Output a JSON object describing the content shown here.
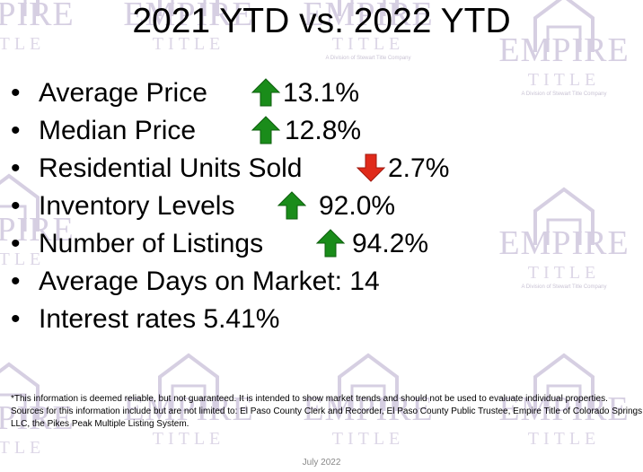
{
  "title": "2021 YTD vs. 2022 YTD",
  "watermark": {
    "brand": "EMPIRE",
    "subtitle": "TITLE",
    "division": "A Division of Stewart Title Company"
  },
  "bullets": [
    {
      "text": "Average Price",
      "trend": "up",
      "value": "13.1%"
    },
    {
      "text": "Median Price",
      "trend": "up",
      "value": "12.8%"
    },
    {
      "text": "Residential Units Sold",
      "trend": "down",
      "value": "2.7%"
    },
    {
      "text": "Inventory Levels",
      "trend": "up",
      "value": "92.0%"
    },
    {
      "text": "Number of Listings",
      "trend": "up",
      "value": "94.2%"
    },
    {
      "text": "Average Days on Market: 14",
      "trend": null,
      "value": ""
    },
    {
      "text": "Interest rates 5.41%",
      "trend": null,
      "value": ""
    }
  ],
  "bullet_symbol": "•",
  "footnote": "*This information is deemed reliable, but not guaranteed.  It is intended to show market trends and should not be used to evaluate individual properties.  Sources for this information include but are not limited to: El Paso County Clerk and Recorder, El Paso County Public Trustee, Empire Title of Colorado Springs LLC, the Pikes Peak Multiple Listing System.",
  "date": "July 2022",
  "colors": {
    "up": "#1a8c1a",
    "down": "#e02a1a",
    "watermark": "#d6cfe2"
  }
}
